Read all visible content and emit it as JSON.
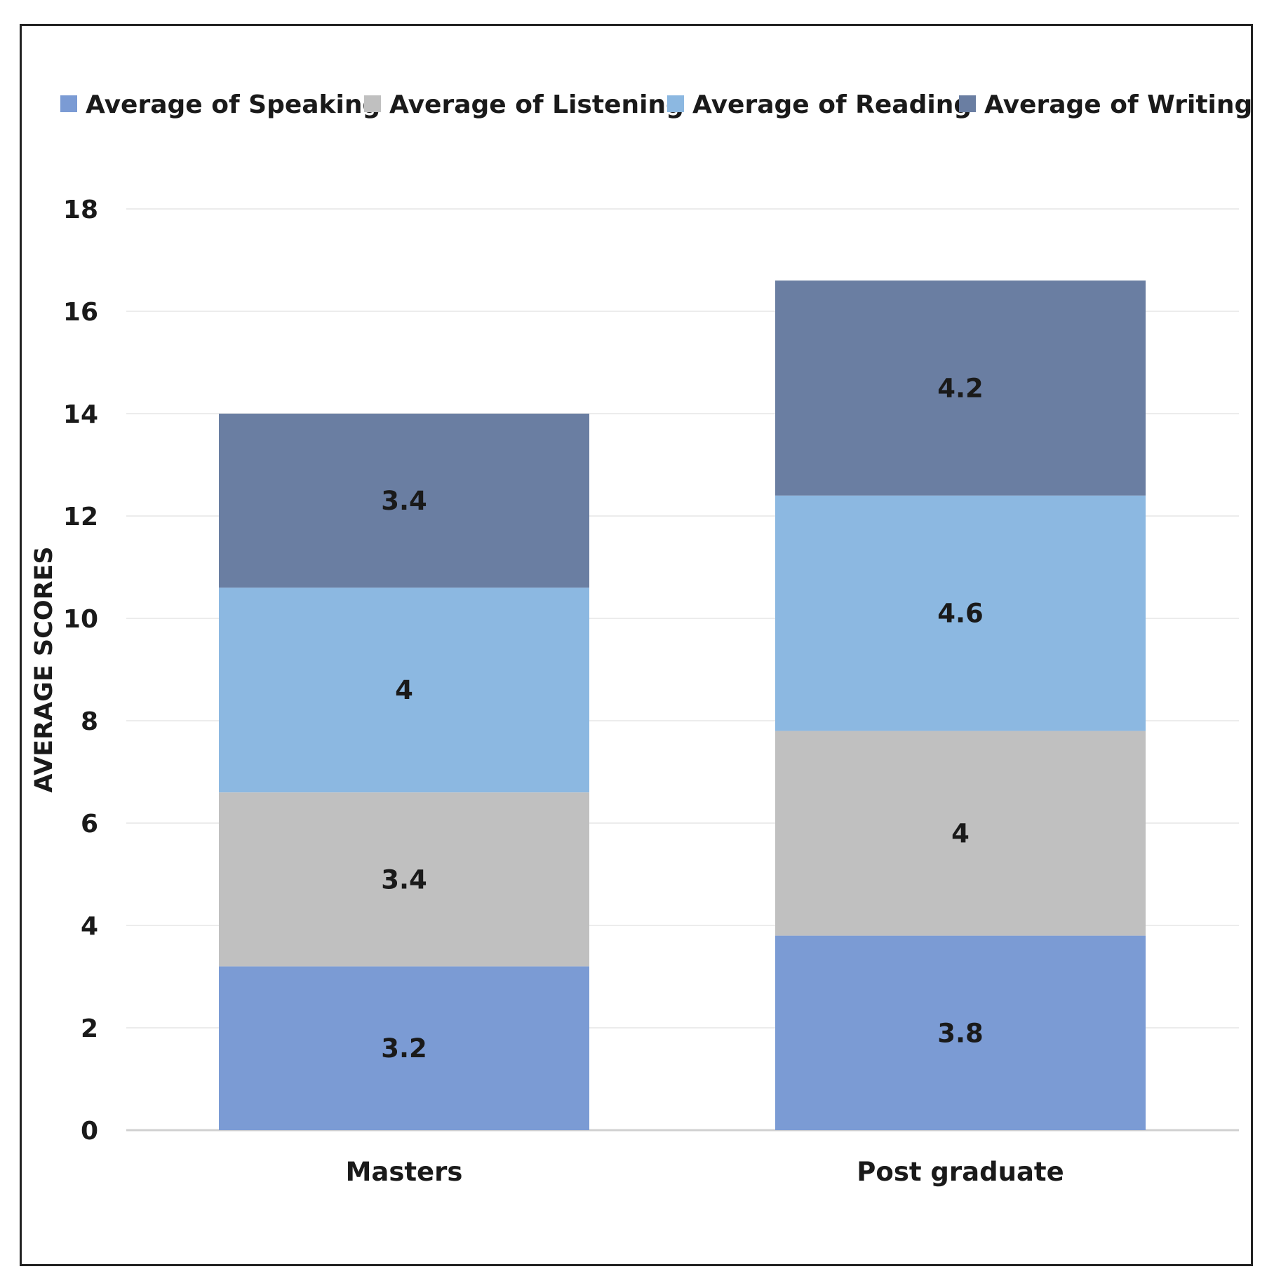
{
  "chart_data": {
    "type": "bar",
    "stacked": true,
    "title": "",
    "xlabel": "",
    "ylabel": "AVERAGE SCORES",
    "ylim": [
      0,
      18
    ],
    "yticks": [
      0,
      2,
      4,
      6,
      8,
      10,
      12,
      14,
      16,
      18
    ],
    "grid": true,
    "legend_position": "top",
    "categories": [
      "Masters",
      "Post graduate"
    ],
    "series": [
      {
        "name": "Average of Speaking",
        "color": "#7b9bd4",
        "values": [
          3.2,
          3.8
        ],
        "labels": [
          "3.2",
          "3.8"
        ]
      },
      {
        "name": "Average of Listening",
        "color": "#c0c0c0",
        "values": [
          3.4,
          4
        ],
        "labels": [
          "3.4",
          "4"
        ]
      },
      {
        "name": "Average of Reading",
        "color": "#8cb8e1",
        "values": [
          4,
          4.6
        ],
        "labels": [
          "4",
          "4.6"
        ]
      },
      {
        "name": "Average of Writing",
        "color": "#6a7ea2",
        "values": [
          3.4,
          4.2
        ],
        "labels": [
          "3.4",
          "4.2"
        ]
      }
    ]
  }
}
